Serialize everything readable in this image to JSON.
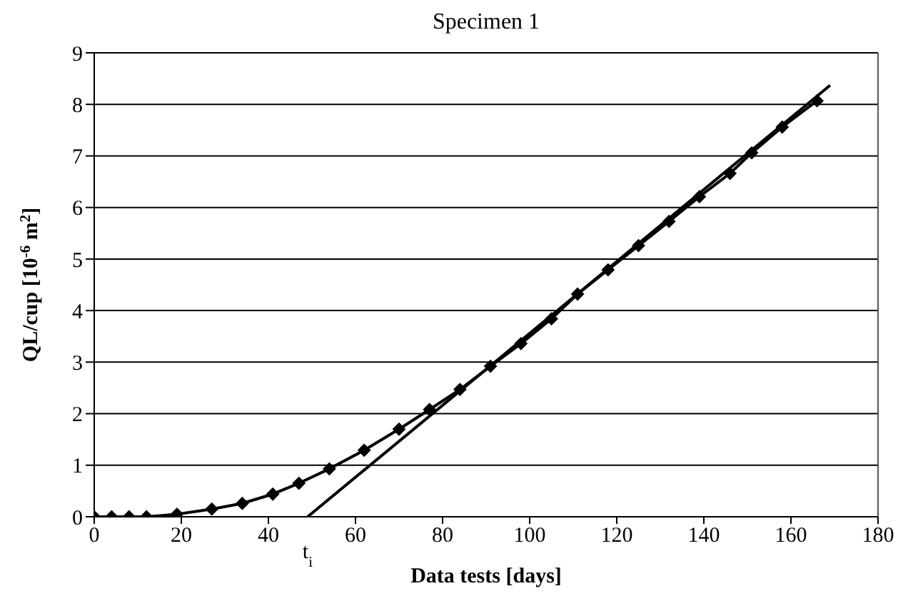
{
  "chart_data": {
    "type": "line",
    "title": "Specimen 1",
    "xlabel": "Data tests [days]",
    "ylabel": "QL/cup [10$^{-6}$ m$^{2}$]",
    "series": [
      {
        "color": "#000000",
        "marker": "diamond",
        "x": [
          0,
          4,
          8,
          12,
          19,
          27,
          34,
          41,
          47,
          54,
          62,
          70,
          77,
          84,
          91,
          98,
          105,
          111,
          118,
          125,
          132,
          139,
          146,
          151,
          158,
          166
        ],
        "values": [
          0,
          0,
          0,
          0,
          0.05,
          0.15,
          0.26,
          0.44,
          0.65,
          0.93,
          1.29,
          1.7,
          2.08,
          2.47,
          2.92,
          3.36,
          3.84,
          4.32,
          4.79,
          5.26,
          5.73,
          6.21,
          6.66,
          7.06,
          7.56,
          8.07
        ]
      },
      {
        "type": "line",
        "color": "#000000",
        "marker": "none",
        "x": [
          49,
          169
        ],
        "values": [
          0,
          8.37
        ]
      }
    ],
    "annotations": [
      {
        "text": "t$_{i}$",
        "x": 49,
        "y": 0
      }
    ],
    "xlim": [
      0,
      180
    ],
    "xticks": [
      0,
      20,
      40,
      60,
      80,
      100,
      120,
      140,
      160,
      180
    ],
    "ylim": [
      0,
      9
    ],
    "yticks": [
      0,
      1,
      2,
      3,
      4,
      5,
      6,
      7,
      8,
      9
    ],
    "grid": "y"
  }
}
